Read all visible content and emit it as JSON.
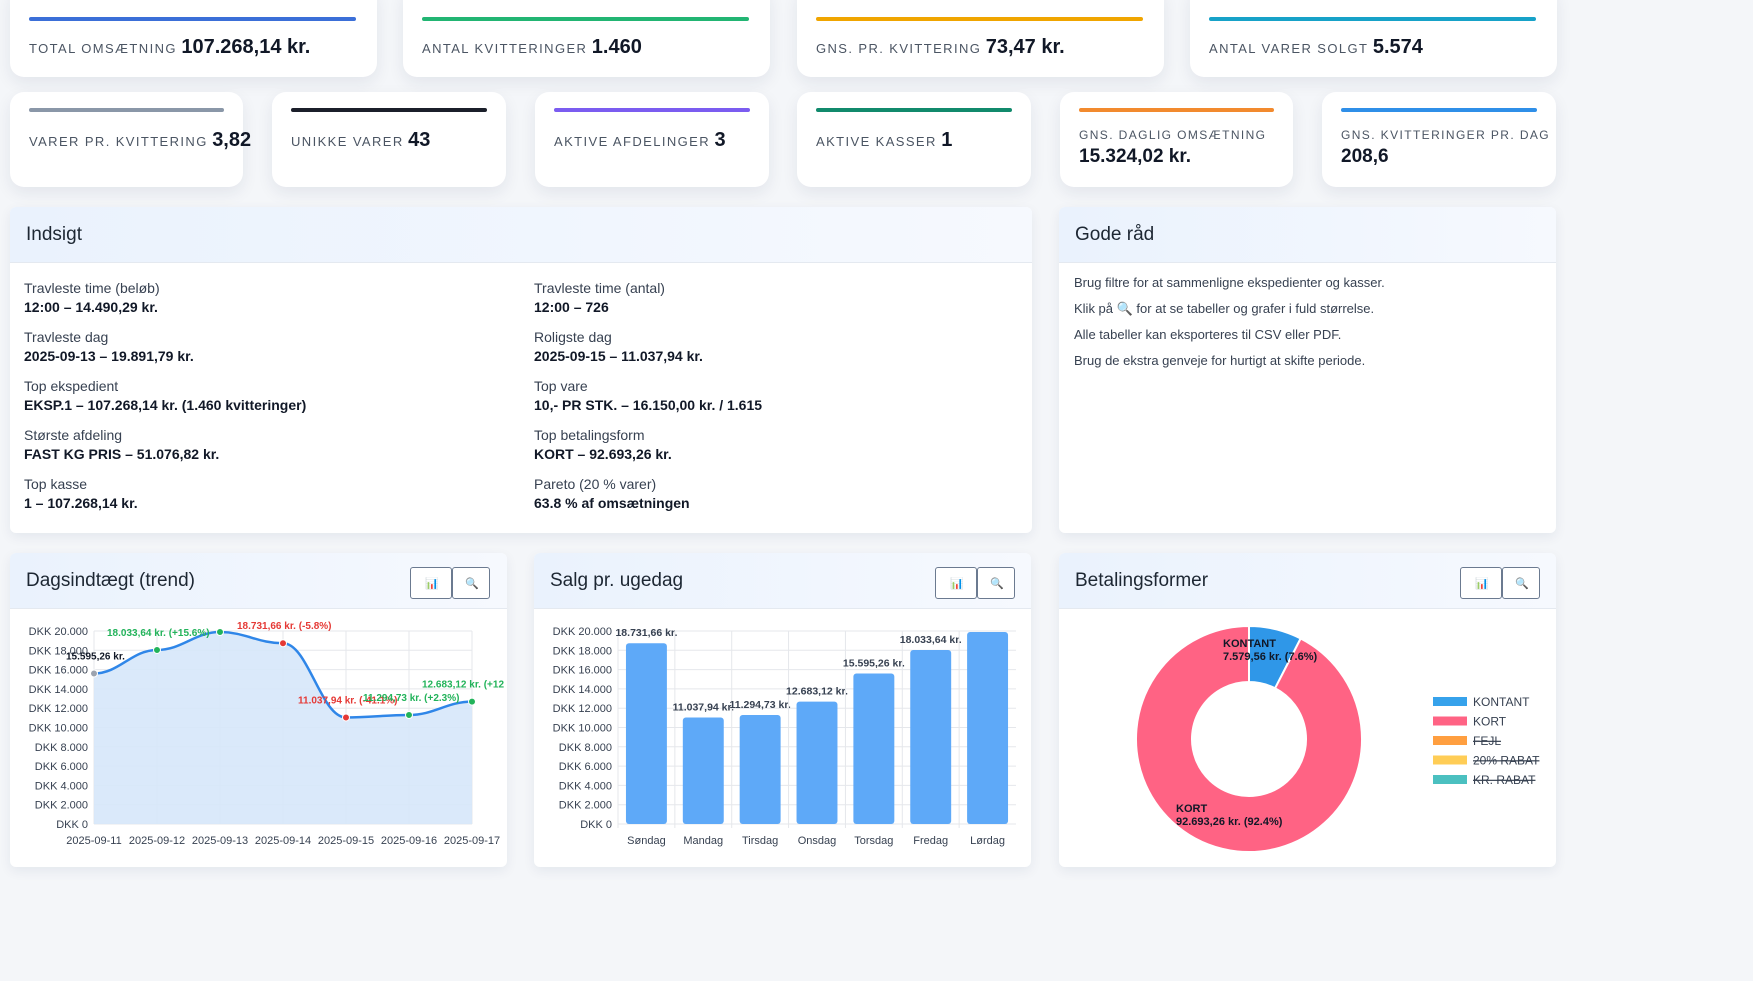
{
  "kpis_top": [
    {
      "label": "Total omsætning",
      "value": "107.268,14 kr.",
      "color": "#3b6fd8"
    },
    {
      "label": "Antal kvitteringer",
      "value": "1.460",
      "color": "#22b573"
    },
    {
      "label": "Gns. pr. kvittering",
      "value": "73,47 kr.",
      "color": "#f0a500"
    },
    {
      "label": "Antal varer solgt",
      "value": "5.574",
      "color": "#17a2c8"
    }
  ],
  "kpis_row2": [
    {
      "label": "Varer pr. kvittering",
      "value": "3,82",
      "color": "#8a97a8"
    },
    {
      "label": "Unikke varer",
      "value": "43",
      "color": "#1b1f2a"
    },
    {
      "label": "Aktive afdelinger",
      "value": "3",
      "color": "#7b5cf0"
    },
    {
      "label": "Aktive kasser",
      "value": "1",
      "color": "#118a6c"
    },
    {
      "label": "Gns. daglig omsætning",
      "value": "15.324,02 kr.",
      "color": "#f28a2e"
    },
    {
      "label": "Gns. kvitteringer pr. dag",
      "value": "208,6",
      "color": "#2f8fe8"
    }
  ],
  "insight": {
    "title": "Indsigt",
    "left": [
      {
        "label": "Travleste time (beløb)",
        "value": "12:00 – 14.490,29 kr."
      },
      {
        "label": "Travleste dag",
        "value": "2025-09-13 – 19.891,79 kr."
      },
      {
        "label": "Top ekspedient",
        "value": "EKSP.1 – 107.268,14 kr. (1.460 kvitteringer)"
      },
      {
        "label": "Største afdeling",
        "value": "FAST KG PRIS – 51.076,82 kr."
      },
      {
        "label": "Top kasse",
        "value": "1 – 107.268,14 kr."
      }
    ],
    "right": [
      {
        "label": "Travleste time (antal)",
        "value": "12:00 – 726"
      },
      {
        "label": "Roligste dag",
        "value": "2025-09-15 – 11.037,94 kr."
      },
      {
        "label": "Top vare",
        "value": "10,- PR STK. – 16.150,00 kr. / 1.615"
      },
      {
        "label": "Top betalingsform",
        "value": "KORT – 92.693,26 kr."
      },
      {
        "label": "Pareto (20 % varer)",
        "value": "63.8 % af omsætningen"
      }
    ]
  },
  "tips": {
    "title": "Gode råd",
    "lines": [
      "Brug filtre for at sammenligne ekspedienter og kasser.",
      "Klik på 🔍 for at se tabeller og grafer i fuld størrelse.",
      "Alle tabeller kan eksporteres til CSV eller PDF.",
      "Brug de ekstra genveje for hurtigt at skifte periode."
    ]
  },
  "panels": {
    "trend_title": "Dagsindtægt (trend)",
    "weekday_title": "Salg pr. ugedag",
    "payment_title": "Betalingsformer"
  },
  "chart_data": [
    {
      "type": "line",
      "title": "Dagsindtægt (trend)",
      "x": [
        "2025-09-11",
        "2025-09-12",
        "2025-09-13",
        "2025-09-14",
        "2025-09-15",
        "2025-09-16",
        "2025-09-17"
      ],
      "values": [
        15595.26,
        18033.64,
        19891.79,
        18731.66,
        11037.94,
        11294.73,
        12683.12
      ],
      "point_labels": [
        "15.595,26 kr.",
        "18.033,64 kr. (+15.6%)",
        "",
        "18.731,66 kr. (-5.8%)",
        "11.037,94 kr. (-41.1%)",
        "11.294,73 kr. (+2.3%)",
        "12.683,12 kr. (+12"
      ],
      "point_colors": [
        "#9ca3af",
        "#22b35a",
        "#22b35a",
        "#e53935",
        "#e53935",
        "#22b35a",
        "#22b35a"
      ],
      "label_colors": [
        "#111827",
        "#22b35a",
        "#22b35a",
        "#e53935",
        "#e53935",
        "#22b35a",
        "#22b35a"
      ],
      "yticks": [
        "DKK 20.000",
        "DKK 18.000",
        "DKK 16.000",
        "DKK 14.000",
        "DKK 12.000",
        "DKK 10.000",
        "DKK 8.000",
        "DKK 6.000",
        "DKK 4.000",
        "DKK 2.000",
        "DKK 0"
      ],
      "ylim": [
        0,
        20000
      ],
      "grid": true,
      "colors": {
        "line": "#2f86e8",
        "fill": "#d6e7fa"
      }
    },
    {
      "type": "bar",
      "title": "Salg pr. ugedag",
      "categories": [
        "Søndag",
        "Mandag",
        "Tirsdag",
        "Onsdag",
        "Torsdag",
        "Fredag",
        "Lørdag"
      ],
      "values": [
        18731.66,
        11037.94,
        11294.73,
        12683.12,
        15595.26,
        18033.64,
        19891.79
      ],
      "data_labels": [
        "18.731,66 kr.",
        "11.037,94 kr.",
        "11.294,73 kr.",
        "12.683,12 kr.",
        "15.595,26 kr.",
        "18.033,64 kr.",
        ""
      ],
      "yticks": [
        "DKK 20.000",
        "DKK 18.000",
        "DKK 16.000",
        "DKK 14.000",
        "DKK 12.000",
        "DKK 10.000",
        "DKK 8.000",
        "DKK 6.000",
        "DKK 4.000",
        "DKK 2.000",
        "DKK 0"
      ],
      "ylim": [
        0,
        20000
      ],
      "grid": true,
      "colors": {
        "bar": "#5ea9f8"
      }
    },
    {
      "type": "pie",
      "title": "Betalingsformer",
      "slices": [
        {
          "name": "KONTANT",
          "value": 7579.56,
          "label": "KONTANT",
          "sub": "7.579,56 kr. (7.6%)",
          "color": "#2f97e8"
        },
        {
          "name": "KORT",
          "value": 92693.26,
          "label": "KORT",
          "sub": "92.693,26 kr. (92.4%)",
          "color": "#ff6384"
        }
      ],
      "legend": [
        {
          "name": "KONTANT",
          "color": "#36a2eb",
          "hidden": false
        },
        {
          "name": "KORT",
          "color": "#ff6384",
          "hidden": false
        },
        {
          "name": "FEJL",
          "color": "#ff9f40",
          "hidden": true
        },
        {
          "name": "20% RABAT",
          "color": "#ffcd56",
          "hidden": true
        },
        {
          "name": "KR. RABAT",
          "color": "#4bc0c0",
          "hidden": true
        }
      ],
      "legend_position": "right"
    }
  ]
}
